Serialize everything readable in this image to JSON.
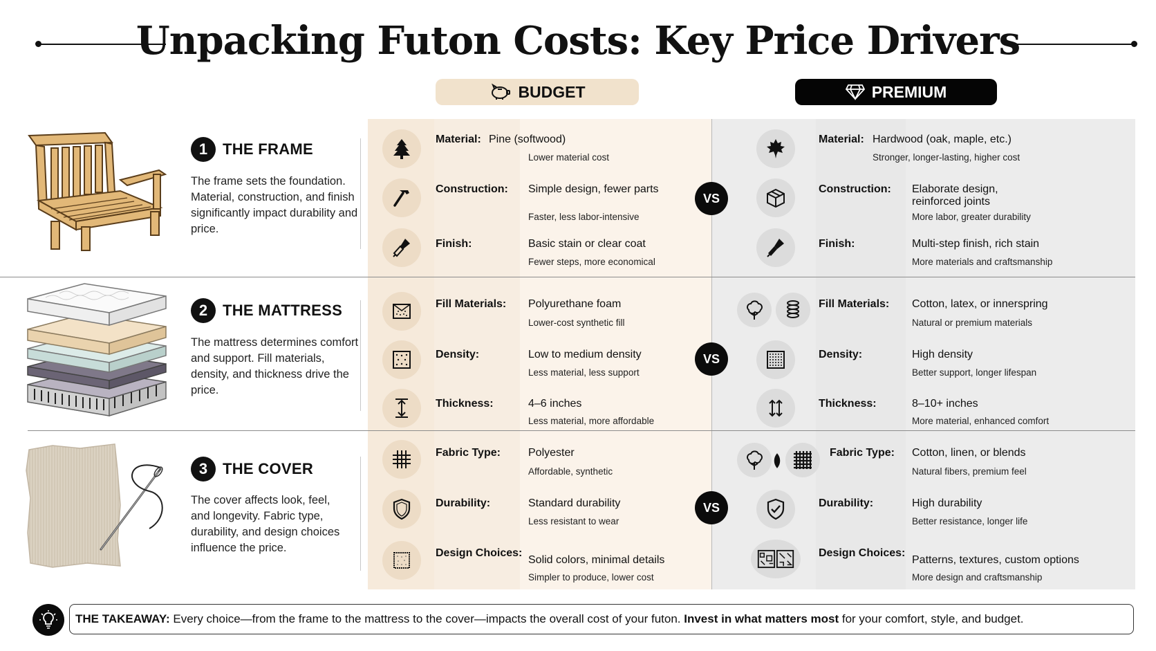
{
  "title": "Unpacking Futon Costs: Key Price Drivers",
  "tiers": {
    "budget": "BUDGET",
    "premium": "PREMIUM"
  },
  "vs": "VS",
  "sections": [
    {
      "num": "1",
      "title": "THE FRAME",
      "desc": "The frame sets the foundation. Material, construction, and finish significantly impact durability and price.",
      "rows": [
        {
          "label": "Material:",
          "budget_value": "Pine (softwood)",
          "budget_sub": "Lower material cost",
          "premium_value": "Hardwood (oak, maple, etc.)",
          "premium_sub": "Stronger, longer-lasting, higher cost"
        },
        {
          "label": "Construction:",
          "budget_value": "Simple design, fewer parts",
          "budget_sub": "Faster, less labor-intensive",
          "premium_value": "Elaborate design, reinforced joints",
          "premium_sub": "More labor, greater durability"
        },
        {
          "label": "Finish:",
          "budget_value": "Basic stain or clear coat",
          "budget_sub": "Fewer steps, more economical",
          "premium_value": "Multi-step finish, rich stain",
          "premium_sub": "More materials and craftsmanship"
        }
      ]
    },
    {
      "num": "2",
      "title": "THE MATTRESS",
      "desc": "The mattress determines comfort and support. Fill materials, density, and thickness drive the price.",
      "rows": [
        {
          "label": "Fill Materials:",
          "budget_value": "Polyurethane foam",
          "budget_sub": "Lower-cost synthetic fill",
          "premium_value": "Cotton, latex, or innerspring",
          "premium_sub": "Natural or premium materials"
        },
        {
          "label": "Density:",
          "budget_value": "Low to medium density",
          "budget_sub": "Less material, less support",
          "premium_value": "High density",
          "premium_sub": "Better support, longer lifespan"
        },
        {
          "label": "Thickness:",
          "budget_value": "4–6 inches",
          "budget_sub": "Less material, more affordable",
          "premium_value": "8–10+ inches",
          "premium_sub": "More material, enhanced comfort"
        }
      ]
    },
    {
      "num": "3",
      "title": "THE COVER",
      "desc": "The cover affects look, feel, and longevity. Fabric type, durability, and design choices influence the price.",
      "rows": [
        {
          "label": "Fabric Type:",
          "budget_value": "Polyester",
          "budget_sub": "Affordable, synthetic",
          "premium_value": "Cotton, linen, or blends",
          "premium_sub": "Natural fibers, premium feel"
        },
        {
          "label": "Durability:",
          "budget_value": "Standard durability",
          "budget_sub": "Less resistant to wear",
          "premium_value": "High durability",
          "premium_sub": "Better resistance, longer life"
        },
        {
          "label": "Design Choices:",
          "budget_value": "Solid colors, minimal details",
          "budget_sub": "Simpler to produce, lower cost",
          "premium_value": "Patterns, textures, custom options",
          "premium_sub": "More design and craftsmanship"
        }
      ]
    }
  ],
  "takeaway": {
    "lead": "THE TAKEAWAY:",
    "text": " Every choice—from the frame to the mattress to the cover—impacts the overall cost of your futon. ",
    "emphasis": "Invest in what matters most",
    "tail": " for your comfort, style, and budget."
  },
  "icons": {
    "budget": [
      "pine-tree-icon",
      "hammer-icon",
      "brush-icon",
      "foam-icon",
      "density-icon",
      "thickness-icon",
      "fabric-weave-icon",
      "shield-icon",
      "swatch-icon"
    ],
    "premium": [
      "maple-leaf-icon",
      "box-icon",
      "brush-icon",
      "cotton-icon",
      "spring-icon",
      "density-icon",
      "thickness-icon",
      "cotton-icon",
      "fabric-weave-icon",
      "shield-check-icon",
      "pattern-icon"
    ]
  },
  "colors": {
    "budget_panel": "#fbf3ea",
    "budget_pill": "#f1e2cc",
    "premium_panel": "#ececec",
    "premium_pill": "#050505"
  }
}
